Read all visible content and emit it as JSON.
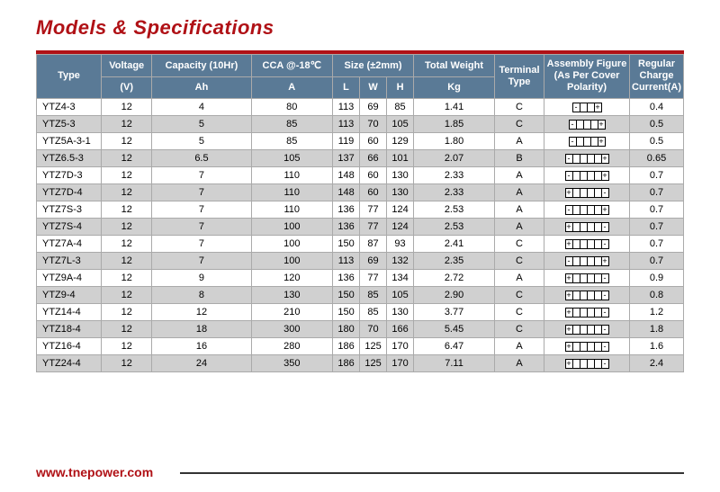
{
  "title": "Models & Specifications",
  "footer_url": "www.tnepower.com",
  "colors": {
    "brand": "#b01116",
    "header_bg": "#5a7a96",
    "row_alt": "#d0d0d0",
    "border": "#aaa"
  },
  "headers": {
    "type": "Type",
    "voltage": "Voltage",
    "capacity": "Capacity (10Hr)",
    "cca": "CCA @-18℃",
    "size": "Size (±2mm)",
    "weight": "Total Weight",
    "terminal": "Terminal Type",
    "assembly": "Assembly Figure (As Per Cover Polarity)",
    "charge": "Regular Charge Current(A)",
    "sub_v": "(V)",
    "sub_ah": "Ah",
    "sub_a": "A",
    "sub_l": "L",
    "sub_w": "W",
    "sub_h": "H",
    "sub_kg": "Kg"
  },
  "rows": [
    {
      "type": "YTZ4-3",
      "v": "12",
      "ah": "4",
      "cca": "80",
      "l": "113",
      "w": "69",
      "h": "85",
      "kg": "1.41",
      "term": "C",
      "asm": [
        "-",
        "",
        "",
        "+"
      ],
      "cur": "0.4"
    },
    {
      "type": "YTZ5-3",
      "v": "12",
      "ah": "5",
      "cca": "85",
      "l": "113",
      "w": "70",
      "h": "105",
      "kg": "1.85",
      "term": "C",
      "asm": [
        "-",
        "",
        "",
        "",
        "+"
      ],
      "cur": "0.5"
    },
    {
      "type": "YTZ5A-3-1",
      "v": "12",
      "ah": "5",
      "cca": "85",
      "l": "119",
      "w": "60",
      "h": "129",
      "kg": "1.80",
      "term": "A",
      "asm": [
        "-",
        "",
        "",
        "",
        "+"
      ],
      "cur": "0.5"
    },
    {
      "type": "YTZ6.5-3",
      "v": "12",
      "ah": "6.5",
      "cca": "105",
      "l": "137",
      "w": "66",
      "h": "101",
      "kg": "2.07",
      "term": "B",
      "asm": [
        "-",
        "",
        "",
        "",
        "",
        "+"
      ],
      "cur": "0.65"
    },
    {
      "type": "YTZ7D-3",
      "v": "12",
      "ah": "7",
      "cca": "110",
      "l": "148",
      "w": "60",
      "h": "130",
      "kg": "2.33",
      "term": "A",
      "asm": [
        "-",
        "",
        "",
        "",
        "",
        "+"
      ],
      "cur": "0.7"
    },
    {
      "type": "YTZ7D-4",
      "v": "12",
      "ah": "7",
      "cca": "110",
      "l": "148",
      "w": "60",
      "h": "130",
      "kg": "2.33",
      "term": "A",
      "asm": [
        "+",
        "",
        "",
        "",
        "",
        "-"
      ],
      "cur": "0.7"
    },
    {
      "type": "YTZ7S-3",
      "v": "12",
      "ah": "7",
      "cca": "110",
      "l": "136",
      "w": "77",
      "h": "124",
      "kg": "2.53",
      "term": "A",
      "asm": [
        "-",
        "",
        "",
        "",
        "",
        "+"
      ],
      "cur": "0.7"
    },
    {
      "type": "YTZ7S-4",
      "v": "12",
      "ah": "7",
      "cca": "100",
      "l": "136",
      "w": "77",
      "h": "124",
      "kg": "2.53",
      "term": "A",
      "asm": [
        "+",
        "",
        "",
        "",
        "",
        "-"
      ],
      "cur": "0.7"
    },
    {
      "type": "YTZ7A-4",
      "v": "12",
      "ah": "7",
      "cca": "100",
      "l": "150",
      "w": "87",
      "h": "93",
      "kg": "2.41",
      "term": "C",
      "asm": [
        "+",
        "",
        "",
        "",
        "",
        "-"
      ],
      "cur": "0.7"
    },
    {
      "type": "YTZ7L-3",
      "v": "12",
      "ah": "7",
      "cca": "100",
      "l": "113",
      "w": "69",
      "h": "132",
      "kg": "2.35",
      "term": "C",
      "asm": [
        "-",
        "",
        "",
        "",
        "",
        "+"
      ],
      "cur": "0.7"
    },
    {
      "type": "YTZ9A-4",
      "v": "12",
      "ah": "9",
      "cca": "120",
      "l": "136",
      "w": "77",
      "h": "134",
      "kg": "2.72",
      "term": "A",
      "asm": [
        "+",
        "",
        "",
        "",
        "",
        "-"
      ],
      "cur": "0.9"
    },
    {
      "type": "YTZ9-4",
      "v": "12",
      "ah": "8",
      "cca": "130",
      "l": "150",
      "w": "85",
      "h": "105",
      "kg": "2.90",
      "term": "C",
      "asm": [
        "+",
        "",
        "",
        "",
        "",
        "-"
      ],
      "cur": "0.8"
    },
    {
      "type": "YTZ14-4",
      "v": "12",
      "ah": "12",
      "cca": "210",
      "l": "150",
      "w": "85",
      "h": "130",
      "kg": "3.77",
      "term": "C",
      "asm": [
        "+",
        "",
        "",
        "",
        "",
        "-"
      ],
      "cur": "1.2"
    },
    {
      "type": "YTZ18-4",
      "v": "12",
      "ah": "18",
      "cca": "300",
      "l": "180",
      "w": "70",
      "h": "166",
      "kg": "5.45",
      "term": "C",
      "asm": [
        "+",
        "",
        "",
        "",
        "",
        "-"
      ],
      "cur": "1.8"
    },
    {
      "type": "YTZ16-4",
      "v": "12",
      "ah": "16",
      "cca": "280",
      "l": "186",
      "w": "125",
      "h": "170",
      "kg": "6.47",
      "term": "A",
      "asm": [
        "+",
        "",
        "",
        "",
        "",
        "-"
      ],
      "cur": "1.6"
    },
    {
      "type": "YTZ24-4",
      "v": "12",
      "ah": "24",
      "cca": "350",
      "l": "186",
      "w": "125",
      "h": "170",
      "kg": "7.11",
      "term": "A",
      "asm": [
        "+",
        "",
        "",
        "",
        "",
        "-"
      ],
      "cur": "2.4"
    }
  ]
}
